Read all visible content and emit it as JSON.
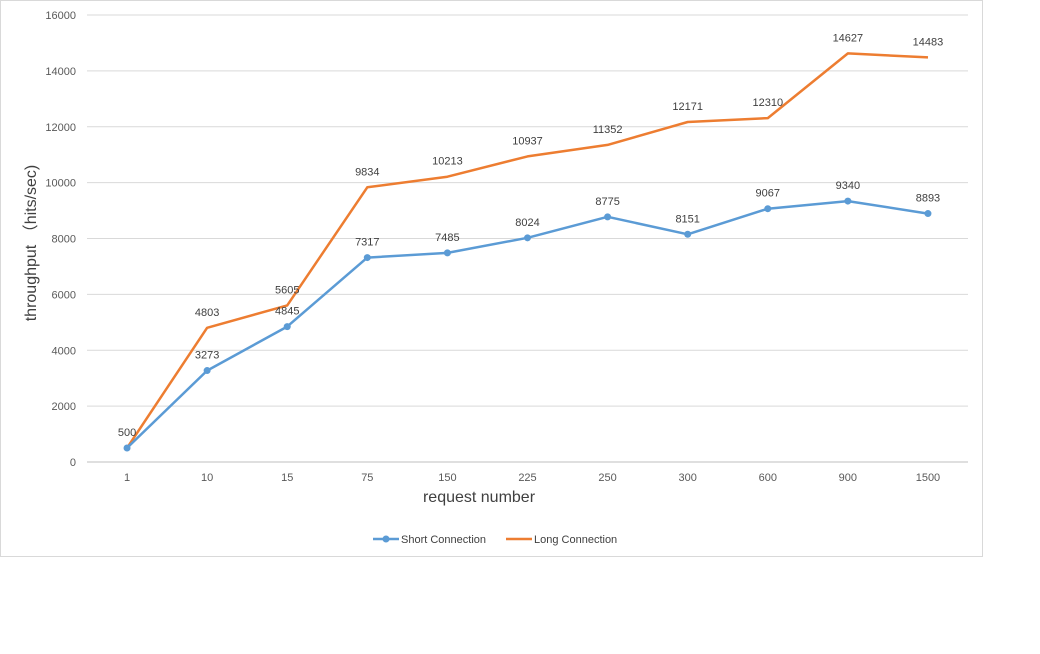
{
  "chart_data": {
    "type": "line",
    "title": "",
    "xlabel": "request number",
    "ylabel": "throughput （hits/sec)",
    "categories": [
      "1",
      "10",
      "15",
      "75",
      "150",
      "225",
      "250",
      "300",
      "600",
      "900",
      "1500"
    ],
    "ylim": [
      0,
      16000
    ],
    "yticks": [
      0,
      2000,
      4000,
      6000,
      8000,
      10000,
      12000,
      14000,
      16000
    ],
    "grid": true,
    "legend_position": "bottom",
    "series": [
      {
        "name": "Short Connection",
        "color": "#5b9bd5",
        "markers": true,
        "values": [
          500,
          3273,
          4845,
          7317,
          7485,
          8024,
          8775,
          8151,
          9067,
          9340,
          8893
        ]
      },
      {
        "name": "Long Connection",
        "color": "#ed7d31",
        "markers": false,
        "values": [
          500,
          4803,
          5605,
          9834,
          10213,
          10937,
          11352,
          12171,
          12310,
          14627,
          14483
        ]
      }
    ]
  }
}
